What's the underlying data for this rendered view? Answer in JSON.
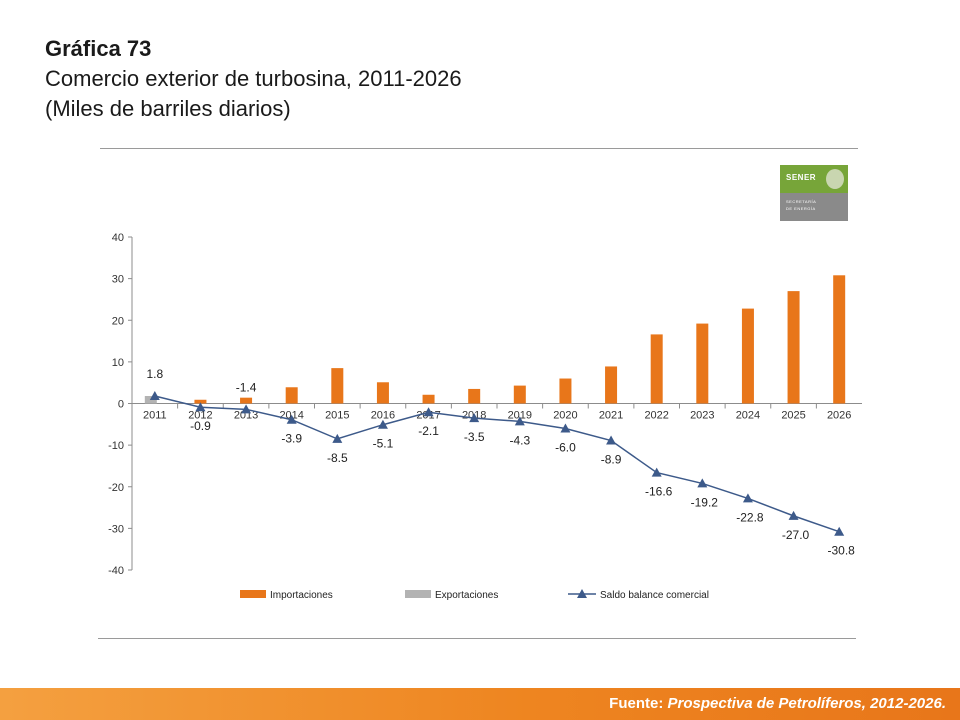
{
  "header": {
    "title": "Gráfica 73",
    "subtitle": "Comercio exterior de turbosina, 2011-2026",
    "units": "(Miles de barriles diarios)"
  },
  "logo": {
    "brand": "SENER",
    "line1": "SECRETARÍA",
    "line2": "DE ENERGÍA",
    "color": "#77a539"
  },
  "footer": {
    "label": "Fuente:",
    "source": "Prospectiva de Petrolíferos, 2012-2026."
  },
  "colors": {
    "importaciones": "#e8761a",
    "exportaciones": "#b3b3b3",
    "saldo": "#3d5a8a",
    "footer": "#ee8520"
  },
  "chart_data": {
    "type": "bar",
    "categories": [
      "2011",
      "2012",
      "2013",
      "2014",
      "2015",
      "2016",
      "2017",
      "2018",
      "2019",
      "2020",
      "2021",
      "2022",
      "2023",
      "2024",
      "2025",
      "2026"
    ],
    "ylim": [
      -40,
      40
    ],
    "yticks": [
      "40",
      "30",
      "20",
      "10",
      "0",
      "-10",
      "-20",
      "-30",
      "-40"
    ],
    "grid": false,
    "legend_position": "bottom",
    "series": [
      {
        "name": "Importaciones",
        "type": "bar",
        "values": [
          0,
          0.9,
          1.4,
          3.9,
          8.5,
          5.1,
          2.1,
          3.5,
          4.3,
          6.0,
          8.9,
          16.6,
          19.2,
          22.8,
          27.0,
          30.8
        ]
      },
      {
        "name": "Exportaciones",
        "type": "bar",
        "values": [
          1.8,
          0,
          0,
          0,
          0,
          0,
          0,
          0,
          0,
          0,
          0,
          0,
          0,
          0,
          0,
          0
        ]
      },
      {
        "name": "Saldo balance comercial",
        "type": "line",
        "marker": "triangle",
        "values": [
          1.8,
          -0.9,
          -1.4,
          -3.9,
          -8.5,
          -5.1,
          -2.1,
          -3.5,
          -4.3,
          -6.0,
          -8.9,
          -16.6,
          -19.2,
          -22.8,
          -27.0,
          -30.8
        ]
      }
    ],
    "data_labels": [
      "1.8",
      "-0.9",
      "-1.4",
      "-3.9",
      "-8.5",
      "-5.1",
      "-2.1",
      "-3.5",
      "-4.3",
      "-6.0",
      "-8.9",
      "-16.6",
      "-19.2",
      "-22.8",
      "-27.0",
      "-30.8"
    ]
  }
}
